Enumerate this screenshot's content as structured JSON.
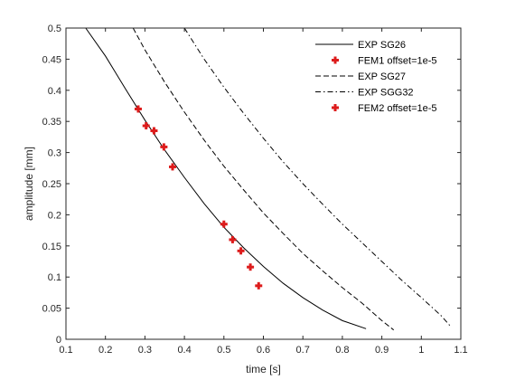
{
  "chart_data": {
    "type": "line",
    "xlabel": "time [s]",
    "ylabel": "amplitude [mm]",
    "xlim": [
      0.1,
      1.1
    ],
    "ylim": [
      0,
      0.5
    ],
    "x_ticks": [
      "0.1",
      "0.2",
      "0.3",
      "0.4",
      "0.5",
      "0.6",
      "0.7",
      "0.8",
      "0.9",
      "1",
      "1.1"
    ],
    "y_ticks": [
      "0",
      "0.05",
      "0.1",
      "0.15",
      "0.2",
      "0.25",
      "0.3",
      "0.35",
      "0.4",
      "0.45",
      "0.5"
    ],
    "grid": false,
    "legend_position": "top-right",
    "series": [
      {
        "name": "EXP SG26",
        "style": "solid",
        "color": "#000000",
        "x": [
          0.15,
          0.2,
          0.25,
          0.3,
          0.35,
          0.4,
          0.45,
          0.5,
          0.55,
          0.6,
          0.65,
          0.7,
          0.75,
          0.8,
          0.86
        ],
        "y": [
          0.5,
          0.455,
          0.403,
          0.352,
          0.304,
          0.26,
          0.218,
          0.18,
          0.147,
          0.117,
          0.09,
          0.067,
          0.047,
          0.03,
          0.017
        ]
      },
      {
        "name": "FEM1 offset=1e-5",
        "style": "marker",
        "color": "#dd1c1c",
        "x": [
          0.283,
          0.303,
          0.323,
          0.348,
          0.37
        ],
        "y": [
          0.37,
          0.343,
          0.335,
          0.309,
          0.277
        ]
      },
      {
        "name": "EXP SG27",
        "style": "dashed",
        "color": "#000000",
        "x": [
          0.27,
          0.3,
          0.35,
          0.4,
          0.45,
          0.5,
          0.55,
          0.6,
          0.65,
          0.7,
          0.75,
          0.8,
          0.85,
          0.9,
          0.93
        ],
        "y": [
          0.5,
          0.465,
          0.413,
          0.365,
          0.32,
          0.278,
          0.24,
          0.203,
          0.17,
          0.138,
          0.11,
          0.083,
          0.058,
          0.03,
          0.015
        ]
      },
      {
        "name": "EXP SGG32",
        "style": "dashdot",
        "color": "#000000",
        "x": [
          0.4,
          0.45,
          0.5,
          0.55,
          0.6,
          0.65,
          0.7,
          0.75,
          0.8,
          0.85,
          0.9,
          0.95,
          1.0,
          1.05,
          1.075
        ],
        "y": [
          0.5,
          0.45,
          0.405,
          0.363,
          0.323,
          0.285,
          0.25,
          0.217,
          0.185,
          0.155,
          0.125,
          0.095,
          0.067,
          0.038,
          0.02
        ]
      },
      {
        "name": "FEM2 offset=1e-5",
        "style": "marker",
        "color": "#dd1c1c",
        "x": [
          0.5,
          0.522,
          0.543,
          0.567,
          0.588
        ],
        "y": [
          0.185,
          0.16,
          0.142,
          0.116,
          0.086
        ]
      }
    ]
  }
}
